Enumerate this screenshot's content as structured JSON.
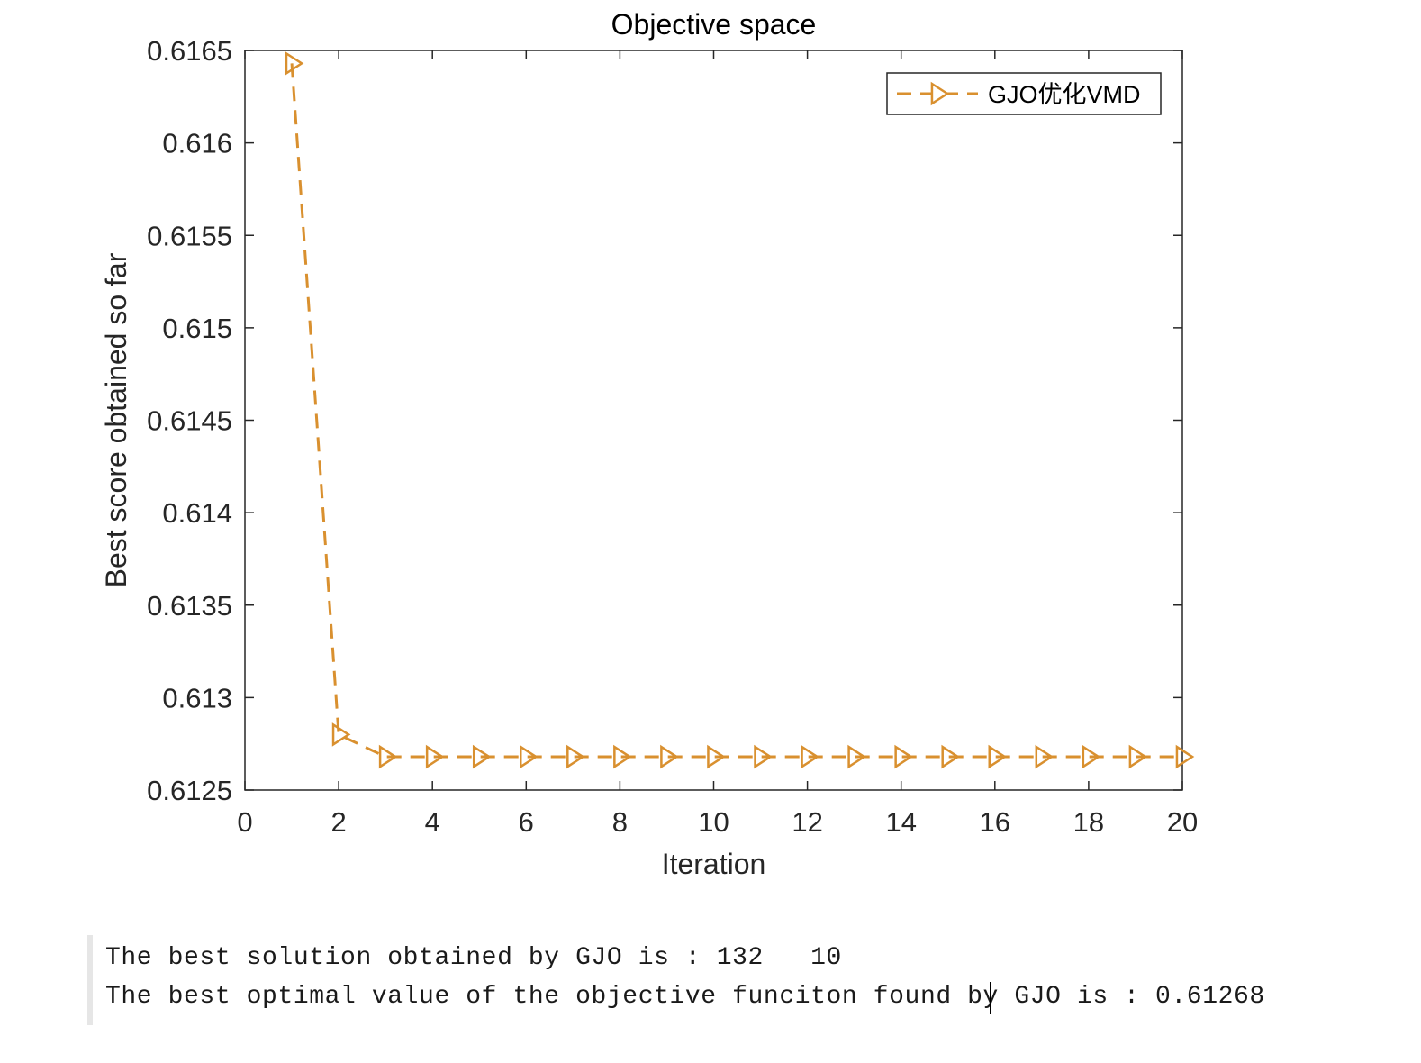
{
  "chart_data": {
    "type": "line",
    "title": "Objective space",
    "xlabel": "Iteration",
    "ylabel": "Best score obtained so far",
    "xlim": [
      0,
      20
    ],
    "ylim": [
      0.6125,
      0.6165
    ],
    "x_ticks": [
      0,
      2,
      4,
      6,
      8,
      10,
      12,
      14,
      16,
      18,
      20
    ],
    "x_tick_labels": [
      "0",
      "2",
      "4",
      "6",
      "8",
      "10",
      "12",
      "14",
      "16",
      "18",
      "20"
    ],
    "y_ticks": [
      0.6125,
      0.613,
      0.6135,
      0.614,
      0.6145,
      0.615,
      0.6155,
      0.616,
      0.6165
    ],
    "y_tick_labels": [
      "0.6125",
      "0.613",
      "0.6135",
      "0.614",
      "0.6145",
      "0.615",
      "0.6155",
      "0.616",
      "0.6165"
    ],
    "grid": false,
    "legend_position": "top-right",
    "series": [
      {
        "name": "GJO优化VMD",
        "color": "#d9902f",
        "line_style": "dashed",
        "marker": "right-triangle",
        "x": [
          1,
          2,
          3,
          4,
          5,
          6,
          7,
          8,
          9,
          10,
          11,
          12,
          13,
          14,
          15,
          16,
          17,
          18,
          19,
          20
        ],
        "y": [
          0.61643,
          0.6128,
          0.61268,
          0.61268,
          0.61268,
          0.61268,
          0.61268,
          0.61268,
          0.61268,
          0.61268,
          0.61268,
          0.61268,
          0.61268,
          0.61268,
          0.61268,
          0.61268,
          0.61268,
          0.61268,
          0.61268,
          0.61268
        ]
      }
    ]
  },
  "console": {
    "line1": "The best solution obtained by GJO is : 132   10",
    "line2": "The best optimal value of the objective funciton found by GJO is : 0.61268"
  }
}
